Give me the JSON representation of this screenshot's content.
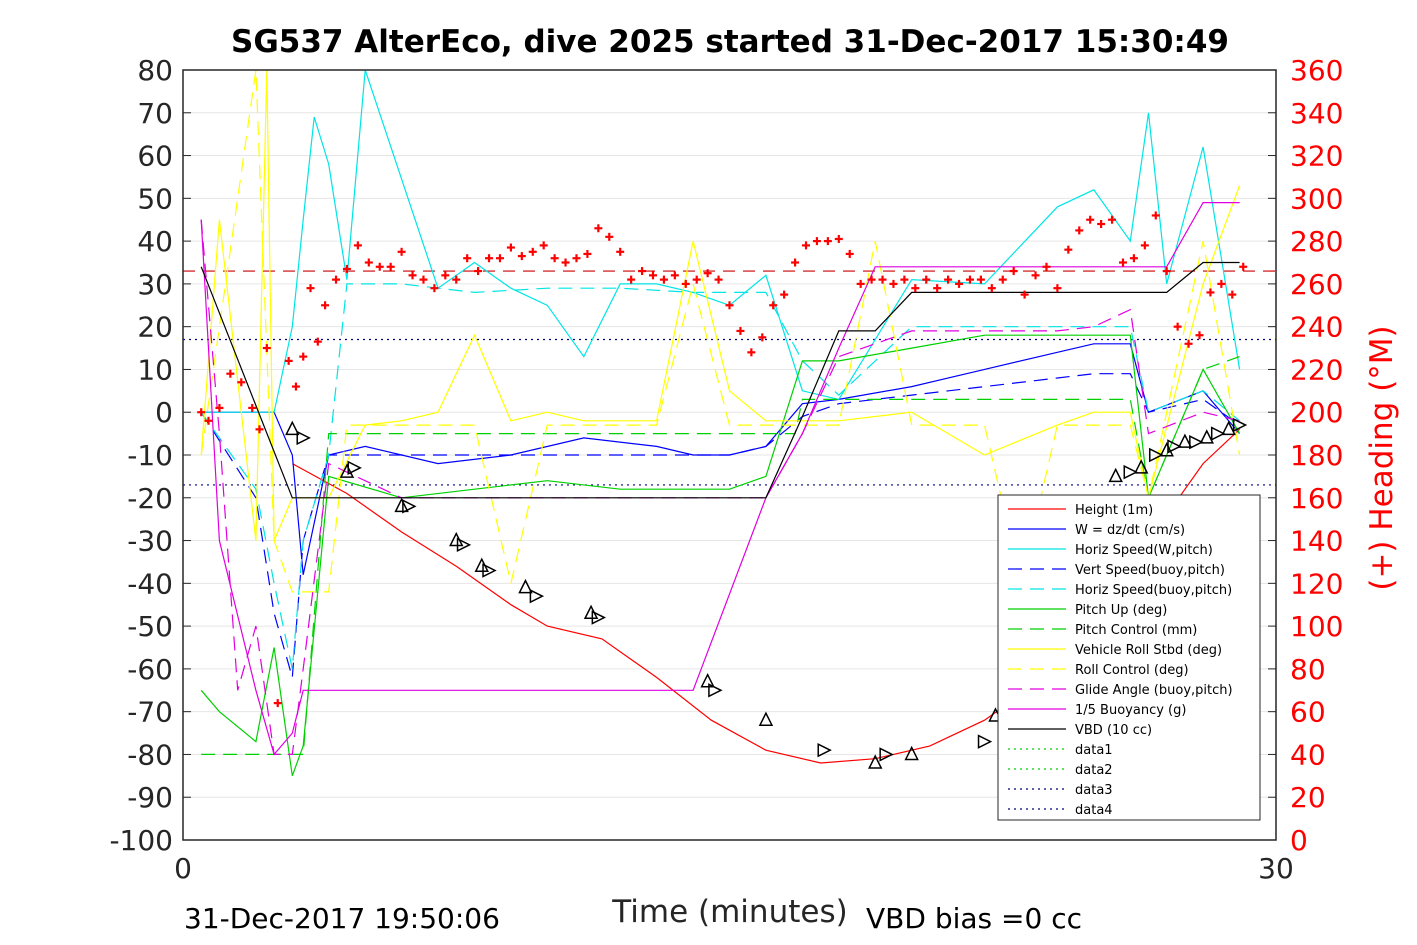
{
  "chart_data": {
    "type": "line",
    "title": "SG537 AlterEco, dive 2025 started 31-Dec-2017 15:30:49",
    "xlabel": "Time (minutes)",
    "ylabel_right": "(+) Heading (°M)",
    "xlim": [
      0,
      30
    ],
    "ylim": [
      -100,
      80
    ],
    "ylim_right": [
      0,
      360
    ],
    "xticks": [
      "0",
      "30"
    ],
    "yticks": [
      "80",
      "70",
      "60",
      "50",
      "40",
      "30",
      "20",
      "10",
      "0",
      "-10",
      "-20",
      "-30",
      "-40",
      "-50",
      "-60",
      "-70",
      "-80",
      "-90",
      "-100"
    ],
    "yticks_right": [
      "360",
      "340",
      "320",
      "300",
      "280",
      "260",
      "240",
      "220",
      "200",
      "180",
      "160",
      "140",
      "120",
      "100",
      "80",
      "60",
      "40",
      "20",
      "0"
    ],
    "footer_left": "31-Dec-2017 19:50:06",
    "footer_right": "VBD bias =0 cc",
    "legend_position": "lower-right",
    "colors": {
      "height": "#ff0000",
      "w": "#0000ff",
      "horiz_w": "#00e5e5",
      "vert_buoy": "#0000ff",
      "horiz_buoy": "#00e5e5",
      "pitch": "#00d000",
      "pitch_ctrl": "#00d000",
      "roll": "#ffff00",
      "roll_ctrl": "#ffff00",
      "glide": "#e000e0",
      "buoy": "#e000e0",
      "vbd": "#000000",
      "heading": "#ff0000"
    },
    "series": [
      {
        "name": "Height (1m)",
        "style": "solid",
        "color": "#ff0000",
        "x": [
          3.0,
          4.5,
          6,
          7.5,
          9,
          10,
          11.5,
          13,
          14.5,
          16,
          17.5,
          19,
          20.5,
          22,
          23.5,
          25,
          26.5,
          28,
          29
        ],
        "y": [
          -12,
          -19,
          -28,
          -36,
          -45,
          -50,
          -53,
          -62,
          -72,
          -79,
          -82,
          -81,
          -78,
          -72,
          -63,
          -50,
          -30,
          -12,
          -4
        ]
      },
      {
        "name": "W = dz/dt (cm/s)",
        "style": "solid",
        "color": "#0000ff",
        "x": [
          0.5,
          2,
          2.5,
          3,
          3.3,
          4,
          5,
          7,
          9,
          11,
          13,
          14,
          15,
          16,
          17,
          18,
          20,
          22,
          24,
          25,
          26,
          26.5,
          28,
          29
        ],
        "y": [
          0,
          0,
          0,
          -10,
          -38,
          -10,
          -8,
          -12,
          -10,
          -6,
          -8,
          -10,
          -10,
          -8,
          2,
          3,
          6,
          10,
          14,
          16,
          16,
          0,
          5,
          -5
        ]
      },
      {
        "name": "Horiz Speed(W,pitch)",
        "style": "solid",
        "color": "#00e5e5",
        "x": [
          0.5,
          2,
          2.5,
          3,
          3.3,
          3.6,
          4,
          4.5,
          5,
          7,
          8,
          9,
          10,
          11,
          12,
          13,
          14,
          15,
          16,
          17,
          18,
          20,
          22,
          24,
          25,
          26,
          26.5,
          27,
          28,
          29
        ],
        "y": [
          0,
          0,
          0,
          20,
          45,
          69,
          58,
          31,
          80,
          29,
          35,
          29,
          25,
          13,
          30,
          30,
          28,
          25,
          32,
          5,
          3,
          31,
          30,
          48,
          52,
          40,
          70,
          30,
          62,
          10
        ]
      },
      {
        "name": "Vert Speed(buoy,pitch)",
        "style": "dashed",
        "color": "#0000ff",
        "x": [
          0.5,
          2,
          2.5,
          3,
          3.3,
          4,
          6,
          8,
          10,
          12,
          14,
          15,
          16,
          17,
          18,
          20,
          22,
          24,
          25,
          26,
          26.5,
          28,
          29
        ],
        "y": [
          0,
          -20,
          -47,
          -62,
          -30,
          -10,
          -10,
          -10,
          -10,
          -10,
          -10,
          -10,
          -8,
          -1,
          2,
          4,
          6,
          8,
          9,
          9,
          0,
          3,
          -3
        ]
      },
      {
        "name": "Horiz Speed(buoy,pitch)",
        "style": "dashed",
        "color": "#00e5e5",
        "x": [
          0.5,
          2,
          2.5,
          3,
          3.3,
          4,
          4.5,
          6,
          8,
          10,
          12,
          14,
          15,
          16,
          17,
          18,
          20,
          22,
          24,
          25,
          26,
          26.5,
          28,
          29
        ],
        "y": [
          0,
          -18,
          -40,
          -60,
          -30,
          -10,
          30,
          30,
          28,
          29,
          29,
          28,
          28,
          28,
          12,
          4,
          20,
          20,
          20,
          20,
          20,
          0,
          5,
          -2
        ]
      },
      {
        "name": "Pitch Up (deg)",
        "style": "solid",
        "color": "#00d000",
        "x": [
          0.5,
          1,
          2,
          2.5,
          3,
          3.3,
          4,
          6,
          8,
          10,
          12,
          14,
          15,
          16,
          17,
          18,
          20,
          22,
          24,
          25,
          26,
          26.5,
          28,
          29
        ],
        "y": [
          -65,
          -70,
          -77,
          -55,
          -85,
          -78,
          -15,
          -20,
          -18,
          -16,
          -18,
          -18,
          -18,
          -15,
          12,
          12,
          15,
          18,
          18,
          18,
          18,
          -20,
          10,
          -5
        ]
      },
      {
        "name": "Pitch Control (mm)",
        "style": "dashed",
        "color": "#00d000",
        "x": [
          0.5,
          2,
          3,
          3.3,
          4,
          6,
          10,
          14,
          16,
          16.8,
          17,
          18,
          22,
          25,
          26,
          26.5,
          28,
          29
        ],
        "y": [
          -80,
          -80,
          -80,
          -80,
          -5,
          -5,
          -5,
          -5,
          -5,
          -5,
          3,
          3,
          3,
          3,
          3,
          -20,
          10,
          13
        ]
      },
      {
        "name": "Vehicle Roll Stbd (deg)",
        "style": "solid",
        "color": "#ffff00",
        "x": [
          0.5,
          1,
          2,
          2.3,
          2.5,
          3,
          3.3,
          4,
          5,
          6,
          7,
          8,
          9,
          10,
          11,
          12,
          13,
          14,
          15,
          16,
          17,
          18,
          20,
          22,
          24,
          25,
          26,
          26.5,
          28,
          29
        ],
        "y": [
          -10,
          45,
          -30,
          80,
          -30,
          -20,
          -20,
          -20,
          -3,
          -2,
          0,
          18,
          -2,
          0,
          -2,
          -2,
          -2,
          40,
          5,
          -2,
          -2,
          -2,
          0,
          -10,
          -3,
          0,
          0,
          -20,
          30,
          53
        ]
      },
      {
        "name": "Roll Control (deg)",
        "style": "dashed",
        "color": "#ffff00",
        "x": [
          0.5,
          2,
          2.5,
          3,
          4,
          4.5,
          6,
          7,
          8,
          9,
          10,
          11,
          12,
          13,
          14,
          15,
          16,
          17,
          18,
          19,
          20,
          21,
          22,
          23,
          24,
          25,
          26,
          26.5,
          28,
          29
        ],
        "y": [
          -10,
          80,
          -30,
          -42,
          -42,
          -3,
          -3,
          -3,
          -3,
          -40,
          -3,
          -3,
          -3,
          -3,
          30,
          -3,
          -3,
          -3,
          -3,
          40,
          -3,
          -3,
          -3,
          -40,
          -3,
          -3,
          -3,
          -20,
          40,
          -10
        ]
      },
      {
        "name": "Glide Angle (buoy,pitch)",
        "style": "dashed",
        "color": "#e000e0",
        "x": [
          0.5,
          1,
          1.5,
          2,
          2.5,
          3,
          3.3,
          4,
          6,
          8,
          10,
          12,
          14,
          16,
          17,
          18,
          20,
          22,
          24,
          25,
          26,
          26.5,
          28,
          29
        ],
        "y": [
          45,
          -5,
          -65,
          -50,
          -80,
          -80,
          -60,
          -12,
          -20,
          -20,
          -20,
          -20,
          -20,
          -20,
          -5,
          13,
          19,
          19,
          19,
          20,
          24,
          -5,
          0,
          -2
        ]
      },
      {
        "name": "1/5 Buoyancy (g)",
        "style": "solid",
        "color": "#e000e0",
        "x": [
          0.5,
          1,
          2,
          2.5,
          3,
          3.3,
          4,
          6,
          10,
          14,
          16,
          17,
          18,
          19,
          20,
          22,
          24,
          25,
          26,
          26.5,
          27,
          28,
          29
        ],
        "y": [
          45,
          -30,
          -65,
          -80,
          -75,
          -65,
          -65,
          -65,
          -65,
          -65,
          -20,
          -5,
          15,
          34,
          34,
          34,
          34,
          34,
          34,
          34,
          34,
          49,
          49
        ]
      },
      {
        "name": "VBD (10 cc)",
        "style": "solid",
        "color": "#000000",
        "x": [
          0.5,
          3,
          3.3,
          12,
          14,
          15,
          16,
          17,
          18,
          19,
          20,
          22,
          24,
          25,
          26,
          26.5,
          27,
          28,
          29
        ],
        "y": [
          34,
          -20,
          -20,
          -20,
          -20,
          -20,
          -20,
          -1,
          19,
          19,
          28,
          28,
          28,
          28,
          28,
          28,
          28,
          35,
          35
        ]
      },
      {
        "name": "data1",
        "style": "dotted",
        "color": "#00d000",
        "x": [],
        "y": []
      },
      {
        "name": "data2",
        "style": "dotted",
        "color": "#00d000",
        "x": [],
        "y": []
      },
      {
        "name": "data3",
        "style": "dotted",
        "color": "#000080",
        "x": [],
        "y": []
      },
      {
        "name": "data4",
        "style": "dotted",
        "color": "#000080",
        "x": [],
        "y": []
      }
    ],
    "reference_lines": [
      {
        "axis": "right",
        "value": 266,
        "style": "dashed",
        "color": "#cc0000"
      },
      {
        "axis": "left",
        "value": 17,
        "style": "dotted",
        "color": "#000080"
      },
      {
        "axis": "left",
        "value": -17,
        "style": "dotted",
        "color": "#000080"
      }
    ],
    "heading_points": {
      "x": [
        0.5,
        0.7,
        1,
        1.3,
        1.6,
        1.9,
        2.1,
        2.3,
        2.6,
        2.9,
        3.1,
        3.3,
        3.5,
        3.7,
        3.9,
        4.2,
        4.5,
        4.8,
        5.1,
        5.4,
        5.7,
        6,
        6.3,
        6.6,
        6.9,
        7.2,
        7.5,
        7.8,
        8.1,
        8.4,
        8.7,
        9,
        9.3,
        9.6,
        9.9,
        10.2,
        10.5,
        10.8,
        11.1,
        11.4,
        11.7,
        12,
        12.3,
        12.6,
        12.9,
        13.2,
        13.5,
        13.8,
        14.1,
        14.4,
        14.7,
        15,
        15.3,
        15.6,
        15.9,
        16.2,
        16.5,
        16.8,
        17.1,
        17.4,
        17.7,
        18,
        18.3,
        18.6,
        18.9,
        19.2,
        19.5,
        19.8,
        20.1,
        20.4,
        20.7,
        21,
        21.3,
        21.6,
        21.9,
        22.2,
        22.5,
        22.8,
        23.1,
        23.4,
        23.7,
        24,
        24.3,
        24.6,
        24.9,
        25.2,
        25.5,
        25.8,
        26.1,
        26.4,
        26.7,
        27,
        27.3,
        27.6,
        27.9,
        28.2,
        28.5,
        28.8,
        29.1
      ],
      "y": [
        200,
        196,
        202,
        218,
        214,
        202,
        192,
        230,
        64,
        224,
        212,
        226,
        258,
        233,
        250,
        262,
        267,
        278,
        270,
        268,
        268,
        275,
        264,
        262,
        258,
        264,
        262,
        272,
        266,
        272,
        272,
        277,
        273,
        275,
        278,
        272,
        270,
        272,
        274,
        286,
        282,
        275,
        262,
        266,
        264,
        262,
        264,
        260,
        262,
        265,
        262,
        250,
        238,
        228,
        235,
        250,
        255,
        270,
        278,
        280,
        280,
        281,
        274,
        260,
        262,
        262,
        260,
        262,
        258,
        262,
        258,
        262,
        260,
        262,
        262,
        258,
        262,
        266,
        255,
        264,
        268,
        258,
        276,
        285,
        290,
        288,
        290,
        270,
        272,
        278,
        292,
        266,
        240,
        232,
        236,
        256,
        260,
        255,
        268
      ]
    },
    "markers": {
      "x": [
        3.0,
        3.3,
        4.5,
        4.7,
        6,
        6.2,
        7.5,
        7.7,
        8.2,
        8.4,
        9.4,
        9.7,
        11.2,
        11.4,
        14.4,
        14.6,
        16.0,
        17.6,
        19.0,
        19.3,
        20,
        22,
        22.3,
        23,
        23.8,
        25.4,
        25.6,
        26.0,
        26.3,
        26.7,
        27,
        27.2,
        27.5,
        27.8,
        28.1,
        28.4,
        28.7,
        29
      ],
      "y": [
        -4,
        -6,
        -14,
        -13,
        -22,
        -22,
        -30,
        -31,
        -36,
        -37,
        -41,
        -43,
        -47,
        -48,
        -63,
        -65,
        -72,
        -79,
        -82,
        -80,
        -80,
        -77,
        -71,
        -70,
        -66,
        -62,
        -15,
        -14,
        -13,
        -10,
        -9,
        -8,
        -7,
        -7,
        -6,
        -5,
        -4,
        -3
      ]
    }
  }
}
